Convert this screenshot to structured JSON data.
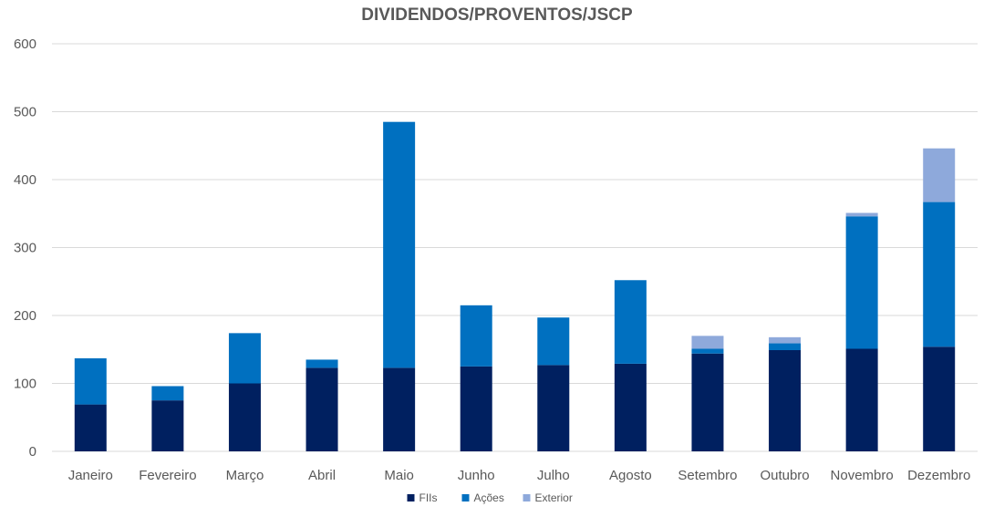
{
  "chart_data": {
    "type": "bar",
    "stacked": true,
    "title": "DIVIDENDOS/PROVENTOS/JSCP",
    "xlabel": "",
    "ylabel": "",
    "ylim": [
      0,
      600
    ],
    "yticks": [
      0,
      100,
      200,
      300,
      400,
      500,
      600
    ],
    "grid": true,
    "legend_position": "bottom",
    "categories": [
      "Janeiro",
      "Fevereiro",
      "Março",
      "Abril",
      "Maio",
      "Junho",
      "Julho",
      "Agosto",
      "Setembro",
      "Outubro",
      "Novembro",
      "Dezembro"
    ],
    "series": [
      {
        "name": "FIIs",
        "color": "#002060",
        "values": [
          69,
          75,
          100,
          123,
          123,
          125,
          127,
          129,
          144,
          149,
          151,
          154
        ]
      },
      {
        "name": "Ações",
        "color": "#0070C0",
        "values": [
          68,
          21,
          74,
          12,
          362,
          90,
          70,
          123,
          7,
          10,
          195,
          213
        ]
      },
      {
        "name": "Exterior",
        "color": "#8EA9DB",
        "values": [
          0,
          0,
          0,
          0,
          0,
          0,
          0,
          0,
          19,
          9,
          5,
          79
        ]
      }
    ]
  }
}
